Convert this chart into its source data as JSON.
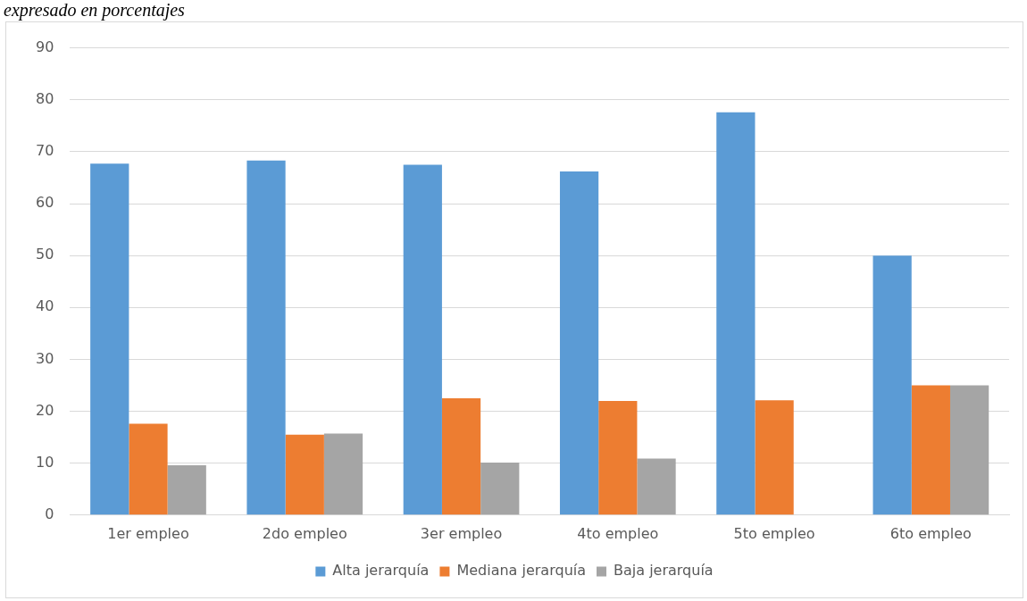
{
  "chart_data": {
    "type": "bar",
    "title": "expresado en porcentajes",
    "categories": [
      "1er empleo",
      "2do empleo",
      "3er empleo",
      "4to empleo",
      "5to empleo",
      "6to empleo"
    ],
    "series": [
      {
        "name": "Alta jerarquía",
        "color": "#5b9bd5",
        "values": [
          67.7,
          68.3,
          67.5,
          66.2,
          77.6,
          50
        ]
      },
      {
        "name": "Mediana jerarquía",
        "color": "#ed7d31",
        "values": [
          17.6,
          15.5,
          22.5,
          22.0,
          22.1,
          25
        ]
      },
      {
        "name": "Baja jerarquía",
        "color": "#a5a5a5",
        "values": [
          9.6,
          15.7,
          10.1,
          10.9,
          0,
          25
        ]
      }
    ],
    "ylim": [
      0,
      90
    ],
    "yticks": [
      0,
      10,
      20,
      30,
      40,
      50,
      60,
      70,
      80,
      90
    ],
    "grid": "y",
    "legend": "bottom"
  }
}
